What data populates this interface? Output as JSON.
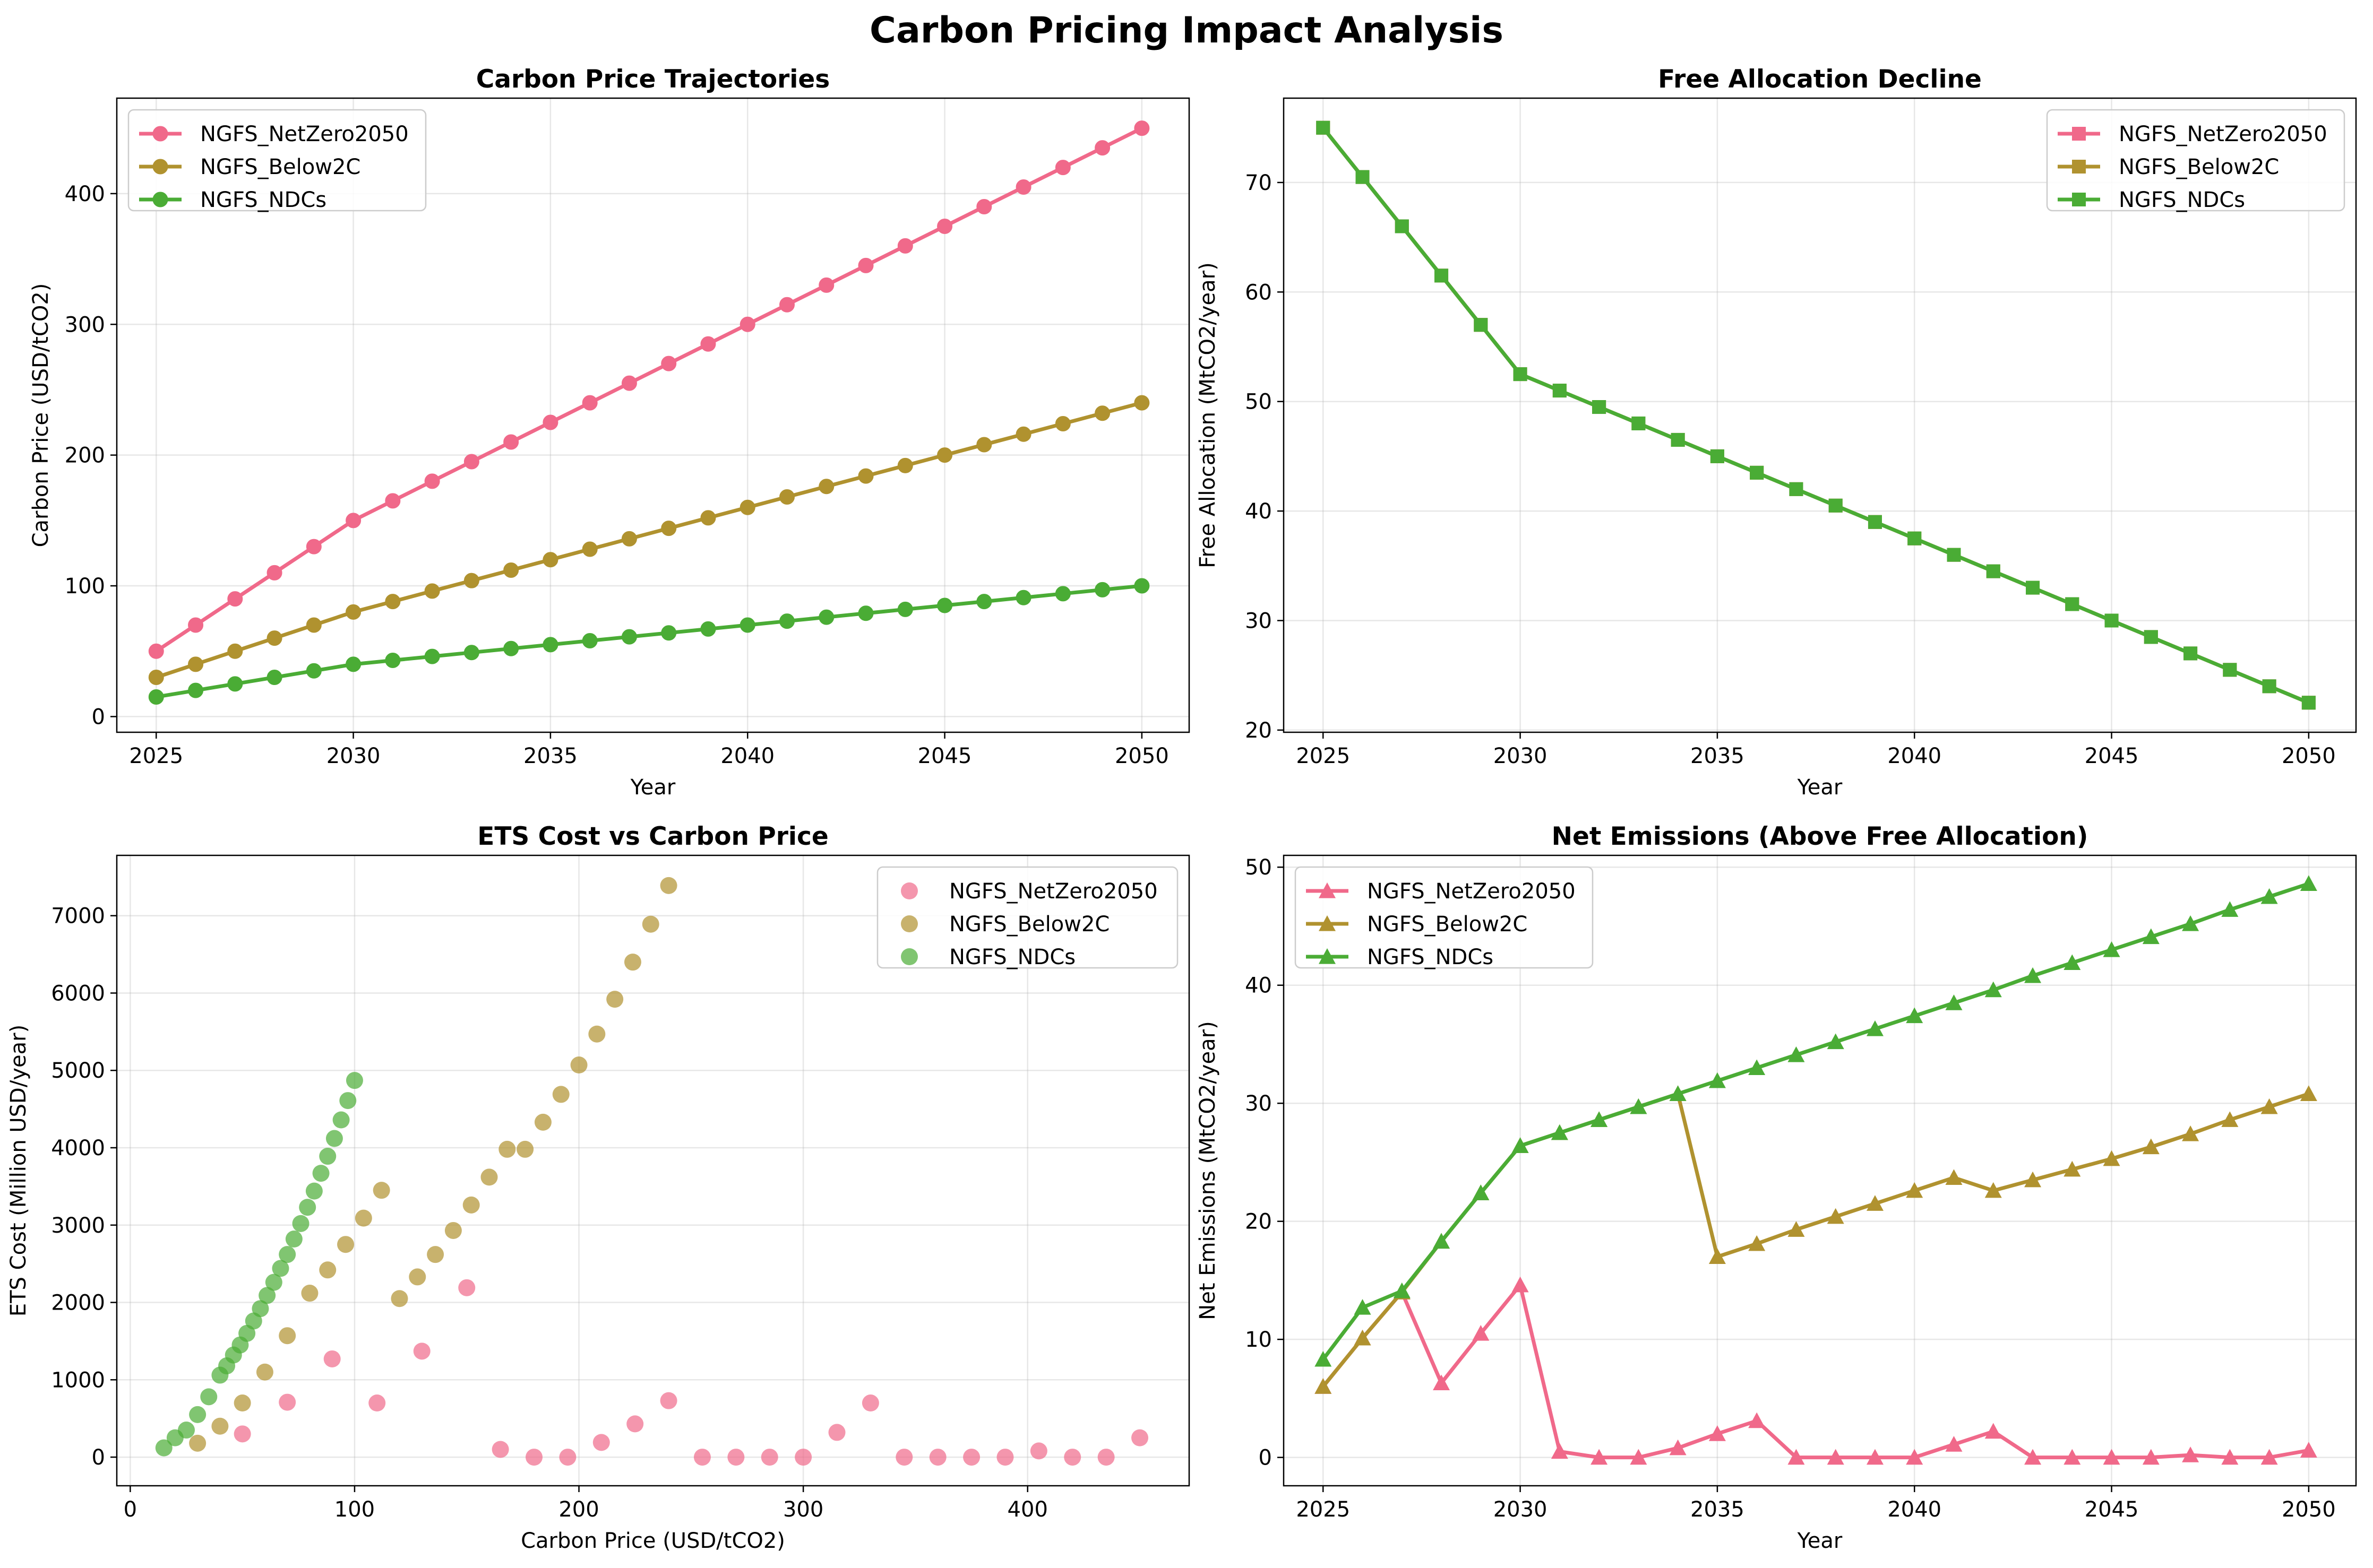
{
  "figure_title": "Carbon Pricing Impact Analysis",
  "colors": {
    "NGFS_NetZero2050": "#f0698a",
    "NGFS_Below2C": "#b0922f",
    "NGFS_NDCs": "#4aac35"
  },
  "chart_data": [
    {
      "type": "line",
      "title": "Carbon Price Trajectories",
      "xlabel": "Year",
      "ylabel": "Carbon Price (USD/tCO2)",
      "marker": "circle",
      "grid": true,
      "legend_position": "top-left",
      "xlim": [
        2024.0,
        2051.2
      ],
      "ylim": [
        -12,
        473
      ],
      "xticks": [
        2025,
        2030,
        2035,
        2040,
        2045,
        2050
      ],
      "yticks": [
        0,
        100,
        200,
        300,
        400
      ],
      "x": [
        2025,
        2026,
        2027,
        2028,
        2029,
        2030,
        2031,
        2032,
        2033,
        2034,
        2035,
        2036,
        2037,
        2038,
        2039,
        2040,
        2041,
        2042,
        2043,
        2044,
        2045,
        2046,
        2047,
        2048,
        2049,
        2050
      ],
      "series": [
        {
          "name": "NGFS_NetZero2050",
          "values": [
            50,
            70,
            90,
            110,
            130,
            150,
            165,
            180,
            195,
            210,
            225,
            240,
            255,
            270,
            285,
            300,
            315,
            330,
            345,
            360,
            375,
            390,
            405,
            420,
            435,
            450
          ]
        },
        {
          "name": "NGFS_Below2C",
          "values": [
            30,
            40,
            50,
            60,
            70,
            80,
            88,
            96,
            104,
            112,
            120,
            128,
            136,
            144,
            152,
            160,
            168,
            176,
            184,
            192,
            200,
            208,
            216,
            224,
            232,
            240
          ]
        },
        {
          "name": "NGFS_NDCs",
          "values": [
            15,
            20,
            25,
            30,
            35,
            40,
            43,
            46,
            49,
            52,
            55,
            58,
            61,
            64,
            67,
            70,
            73,
            76,
            79,
            82,
            85,
            88,
            91,
            94,
            97,
            100
          ]
        }
      ]
    },
    {
      "type": "line",
      "title": "Free Allocation Decline",
      "xlabel": "Year",
      "ylabel": "Free Allocation (MtCO2/year)",
      "marker": "square",
      "grid": true,
      "legend_position": "top-right",
      "xlim": [
        2024.0,
        2051.2
      ],
      "ylim": [
        19.8,
        77.7
      ],
      "xticks": [
        2025,
        2030,
        2035,
        2040,
        2045,
        2050
      ],
      "yticks": [
        20,
        30,
        40,
        50,
        60,
        70
      ],
      "x": [
        2025,
        2026,
        2027,
        2028,
        2029,
        2030,
        2031,
        2032,
        2033,
        2034,
        2035,
        2036,
        2037,
        2038,
        2039,
        2040,
        2041,
        2042,
        2043,
        2044,
        2045,
        2046,
        2047,
        2048,
        2049,
        2050
      ],
      "series": [
        {
          "name": "NGFS_NetZero2050",
          "values": [
            75,
            70.5,
            66,
            61.5,
            57,
            52.5,
            51,
            49.5,
            48,
            46.5,
            45,
            43.5,
            42,
            40.5,
            39,
            37.5,
            36,
            34.5,
            33,
            31.5,
            30,
            28.5,
            27,
            25.5,
            24,
            22.5
          ]
        },
        {
          "name": "NGFS_Below2C",
          "values": [
            75,
            70.5,
            66,
            61.5,
            57,
            52.5,
            51,
            49.5,
            48,
            46.5,
            45,
            43.5,
            42,
            40.5,
            39,
            37.5,
            36,
            34.5,
            33,
            31.5,
            30,
            28.5,
            27,
            25.5,
            24,
            22.5
          ]
        },
        {
          "name": "NGFS_NDCs",
          "values": [
            75,
            70.5,
            66,
            61.5,
            57,
            52.5,
            51,
            49.5,
            48,
            46.5,
            45,
            43.5,
            42,
            40.5,
            39,
            37.5,
            36,
            34.5,
            33,
            31.5,
            30,
            28.5,
            27,
            25.5,
            24,
            22.5
          ]
        }
      ]
    },
    {
      "type": "scatter",
      "title": "ETS Cost vs Carbon Price",
      "xlabel": "Carbon Price (USD/tCO2)",
      "ylabel": "ETS Cost (Million USD/year)",
      "grid": true,
      "legend_position": "top-right",
      "xlim": [
        -6,
        472
      ],
      "ylim": [
        -370,
        7780
      ],
      "xticks": [
        0,
        100,
        200,
        300,
        400
      ],
      "yticks": [
        0,
        1000,
        2000,
        3000,
        4000,
        5000,
        6000,
        7000
      ],
      "series": [
        {
          "name": "NGFS_NetZero2050",
          "x": [
            50,
            70,
            90,
            110,
            130,
            150,
            165,
            180,
            195,
            210,
            225,
            240,
            255,
            270,
            285,
            300,
            315,
            330,
            345,
            360,
            375,
            390,
            405,
            420,
            435,
            450
          ],
          "y": [
            300,
            710,
            1270,
            700,
            1370,
            2190,
            100,
            0,
            0,
            190,
            430,
            730,
            0,
            0,
            0,
            0,
            320,
            700,
            0,
            0,
            0,
            0,
            80,
            0,
            0,
            250
          ]
        },
        {
          "name": "NGFS_Below2C",
          "x": [
            30,
            40,
            50,
            60,
            70,
            80,
            88,
            96,
            104,
            112,
            120,
            128,
            136,
            144,
            152,
            160,
            168,
            176,
            184,
            192,
            200,
            208,
            216,
            224,
            232,
            240
          ],
          "y": [
            180,
            400,
            700,
            1100,
            1570,
            2120,
            2420,
            2750,
            3090,
            3450,
            2050,
            2330,
            2620,
            2930,
            3260,
            3620,
            3980,
            3980,
            4330,
            4690,
            5070,
            5470,
            5920,
            6400,
            6890,
            7390
          ]
        },
        {
          "name": "NGFS_NDCs",
          "x": [
            15,
            20,
            25,
            30,
            35,
            40,
            43,
            46,
            49,
            52,
            55,
            58,
            61,
            64,
            67,
            70,
            73,
            76,
            79,
            82,
            85,
            88,
            91,
            94,
            97,
            100
          ],
          "y": [
            120,
            250,
            350,
            550,
            780,
            1060,
            1180,
            1320,
            1450,
            1600,
            1760,
            1920,
            2090,
            2260,
            2440,
            2620,
            2820,
            3020,
            3230,
            3440,
            3670,
            3890,
            4120,
            4360,
            4610,
            4870
          ]
        }
      ]
    },
    {
      "type": "line",
      "title": "Net Emissions (Above Free Allocation)",
      "xlabel": "Year",
      "ylabel": "Net Emissions (MtCO2/year)",
      "marker": "triangle",
      "grid": true,
      "legend_position": "top-left",
      "xlim": [
        2024.0,
        2051.2
      ],
      "ylim": [
        -2.4,
        51.0
      ],
      "xticks": [
        2025,
        2030,
        2035,
        2040,
        2045,
        2050
      ],
      "yticks": [
        0,
        10,
        20,
        30,
        40,
        50
      ],
      "x": [
        2025,
        2026,
        2027,
        2028,
        2029,
        2030,
        2031,
        2032,
        2033,
        2034,
        2035,
        2036,
        2037,
        2038,
        2039,
        2040,
        2041,
        2042,
        2043,
        2044,
        2045,
        2046,
        2047,
        2048,
        2049,
        2050
      ],
      "series": [
        {
          "name": "NGFS_NetZero2050",
          "values": [
            6,
            10.1,
            14,
            6.3,
            10.5,
            14.6,
            0.5,
            0,
            0,
            0.8,
            2,
            3.1,
            0,
            0,
            0,
            0,
            1.1,
            2.2,
            0,
            0,
            0,
            0,
            0.2,
            0,
            0,
            0.6
          ]
        },
        {
          "name": "NGFS_Below2C",
          "values": [
            6,
            10.1,
            14,
            18.3,
            22.4,
            26.4,
            27.5,
            28.6,
            29.7,
            30.8,
            17,
            18.1,
            19.3,
            20.4,
            21.5,
            22.6,
            23.7,
            22.6,
            23.5,
            24.4,
            25.3,
            26.3,
            27.4,
            28.6,
            29.7,
            30.8
          ]
        },
        {
          "name": "NGFS_NDCs",
          "values": [
            8.3,
            12.7,
            14.1,
            18.3,
            22.4,
            26.4,
            27.5,
            28.6,
            29.7,
            30.8,
            31.9,
            33.0,
            34.1,
            35.2,
            36.3,
            37.4,
            38.5,
            39.6,
            40.8,
            41.9,
            43.0,
            44.1,
            45.2,
            46.4,
            47.5,
            48.6
          ]
        }
      ]
    }
  ]
}
